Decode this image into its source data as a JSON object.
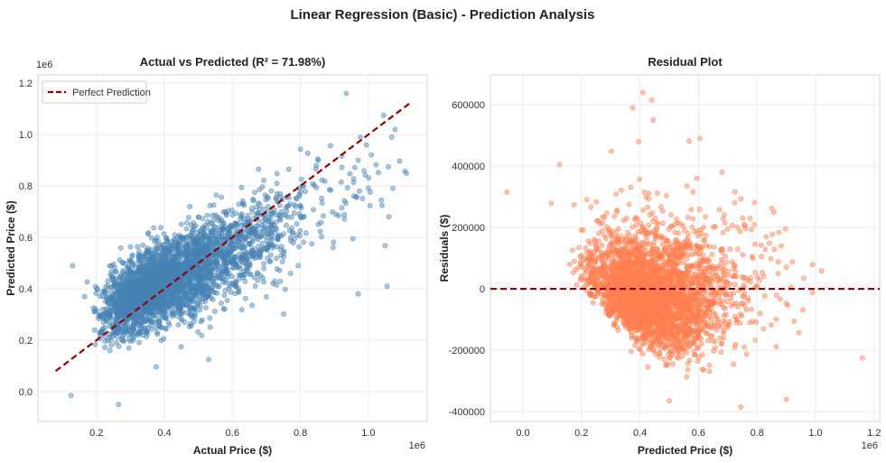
{
  "suptitle": "Linear Regression (Basic) - Prediction Analysis",
  "chart_data": [
    {
      "type": "scatter",
      "title": "Actual vs Predicted (R² = 71.98%)",
      "xlabel": "Actual Price ($)",
      "ylabel": "Predicted Price ($)",
      "x_offset_label": "1e6",
      "y_offset_label": "1e6",
      "xlim": [
        28000,
        1173000
      ],
      "ylim": [
        -116000,
        1232000
      ],
      "xticks": [
        0.2,
        0.4,
        0.6,
        0.8,
        1.0
      ],
      "yticks": [
        0.0,
        0.2,
        0.4,
        0.6,
        0.8,
        1.0,
        1.2
      ],
      "xtick_labels": [
        "0.2",
        "0.4",
        "0.6",
        "0.8",
        "1.0"
      ],
      "ytick_labels": [
        "0.0",
        "0.2",
        "0.4",
        "0.6",
        "0.8",
        "1.0",
        "1.2"
      ],
      "grid": true,
      "point_color": "#4682B4",
      "legend": {
        "position": "top-left",
        "entries": [
          "Perfect Prediction"
        ]
      },
      "reference_line": {
        "name": "Perfect Prediction",
        "from": [
          80000,
          80000
        ],
        "to": [
          1120000,
          1120000
        ],
        "color": "#8B0000",
        "style": "dashed"
      },
      "outliers": [
        [
          935000,
          1160000
        ],
        [
          1045000,
          1075000
        ],
        [
          265000,
          -50000
        ],
        [
          530000,
          125000
        ],
        [
          125000,
          -15000
        ],
        [
          970000,
          380000
        ],
        [
          1055000,
          410000
        ],
        [
          130000,
          490000
        ]
      ]
    },
    {
      "type": "scatter",
      "title": "Residual Plot",
      "xlabel": "Predicted Price ($)",
      "ylabel": "Residuals ($)",
      "x_offset_label": "1e6",
      "xlim": [
        -111000,
        1219000
      ],
      "ylim": [
        -432000,
        697000
      ],
      "xticks": [
        0.0,
        0.2,
        0.4,
        0.6,
        0.8,
        1.0,
        1.2
      ],
      "yticks": [
        -400000,
        -200000,
        0,
        200000,
        400000,
        600000
      ],
      "xtick_labels": [
        "0.0",
        "0.2",
        "0.4",
        "0.6",
        "0.8",
        "1.0",
        "1.2"
      ],
      "ytick_labels": [
        "-400000",
        "-200000",
        "0",
        "200000",
        "400000",
        "600000"
      ],
      "grid": true,
      "point_color": "#FF7F50",
      "reference_line": {
        "y": 0,
        "color": "#8B0000",
        "style": "dashed"
      },
      "outliers": [
        [
          410000,
          640000
        ],
        [
          440000,
          615000
        ],
        [
          375000,
          590000
        ],
        [
          445000,
          550000
        ],
        [
          395000,
          480000
        ],
        [
          605000,
          490000
        ],
        [
          -55000,
          315000
        ],
        [
          125000,
          405000
        ],
        [
          1160000,
          -225000
        ],
        [
          500000,
          -365000
        ],
        [
          745000,
          -385000
        ],
        [
          900000,
          -360000
        ]
      ]
    }
  ]
}
